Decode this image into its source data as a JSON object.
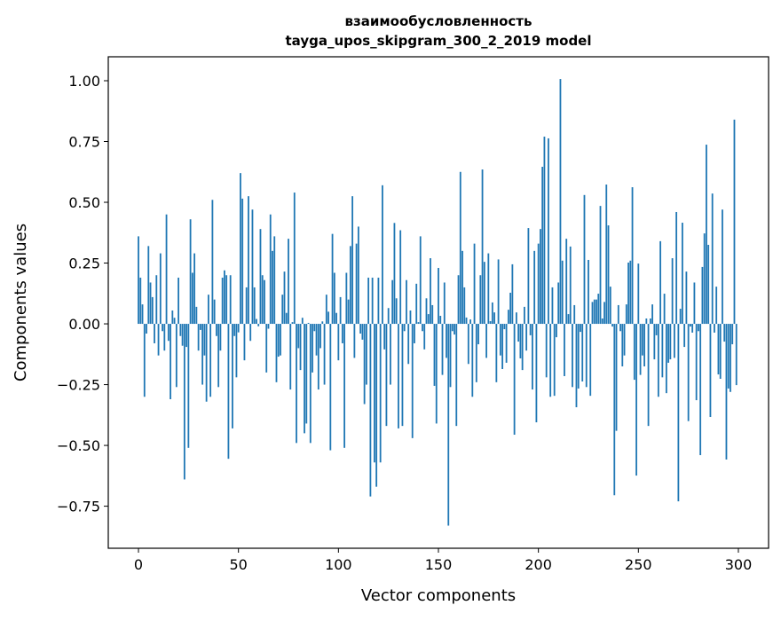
{
  "chart_data": {
    "type": "bar",
    "title": "взаимообусловленность",
    "subtitle": "tayga_upos_skipgram_300_2_2019 model",
    "xlabel": "Vector components",
    "ylabel": "Components values",
    "xlim": [
      -15.1,
      315.1
    ],
    "ylim": [
      -0.923,
      1.0985
    ],
    "xticks": [
      0,
      50,
      100,
      150,
      200,
      250,
      300
    ],
    "xtick_labels": [
      "0",
      "50",
      "100",
      "150",
      "200",
      "250",
      "300"
    ],
    "yticks": [
      -0.75,
      -0.5,
      -0.25,
      0,
      0.25,
      0.5,
      0.75,
      1.0
    ],
    "ytick_labels": [
      "−0.75",
      "−0.50",
      "−0.25",
      "0.00",
      "0.25",
      "0.50",
      "0.75",
      "1.00"
    ],
    "grid": false,
    "bar_color": "#1f77b4",
    "values": [
      0.36,
      0.19,
      0.08,
      -0.3,
      -0.04,
      0.32,
      0.17,
      0.11,
      -0.08,
      0.2,
      -0.13,
      0.29,
      -0.03,
      -0.11,
      0.45,
      -0.07,
      -0.31,
      0.055,
      0.025,
      -0.26,
      0.19,
      -0.05,
      -0.09,
      -0.64,
      -0.095,
      -0.51,
      0.43,
      0.21,
      0.29,
      0.07,
      -0.11,
      -0.025,
      -0.25,
      -0.13,
      -0.32,
      0.12,
      -0.3,
      0.51,
      0.1,
      -0.05,
      -0.26,
      -0.11,
      0.19,
      0.22,
      0.2,
      -0.555,
      0.2,
      -0.43,
      -0.05,
      -0.22,
      -0.035,
      0.62,
      0.515,
      -0.15,
      0.15,
      0.525,
      -0.07,
      0.47,
      0.15,
      0.02,
      -0.01,
      0.39,
      0.2,
      0.18,
      -0.2,
      -0.02,
      0.45,
      0.3,
      0.36,
      -0.24,
      -0.135,
      -0.13,
      0.12,
      0.215,
      0.045,
      0.35,
      -0.27,
      0.007,
      0.54,
      -0.49,
      -0.1,
      -0.19,
      0.025,
      -0.45,
      -0.41,
      0.004,
      -0.49,
      -0.2,
      -0.03,
      -0.13,
      -0.27,
      -0.1,
      0.01,
      -0.25,
      0.12,
      0.05,
      -0.52,
      0.37,
      0.21,
      0.045,
      -0.15,
      0.11,
      -0.08,
      -0.51,
      0.21,
      0.1,
      0.32,
      0.525,
      -0.14,
      0.33,
      0.4,
      -0.04,
      -0.065,
      -0.33,
      -0.25,
      0.19,
      -0.71,
      0.19,
      -0.57,
      -0.67,
      0.19,
      -0.57,
      0.57,
      -0.105,
      -0.42,
      0.065,
      -0.25,
      0.18,
      0.415,
      0.105,
      -0.43,
      0.385,
      -0.42,
      -0.03,
      0.18,
      -0.165,
      0.055,
      -0.47,
      -0.08,
      0.165,
      0.007,
      0.36,
      -0.03,
      -0.105,
      0.105,
      0.04,
      0.27,
      0.077,
      -0.255,
      -0.41,
      0.23,
      0.033,
      -0.21,
      0.17,
      -0.14,
      -0.83,
      -0.26,
      -0.03,
      -0.044,
      -0.42,
      0.2,
      0.625,
      0.3,
      0.15,
      0.026,
      -0.165,
      0.018,
      -0.3,
      0.33,
      -0.24,
      -0.084,
      0.2,
      0.635,
      0.255,
      -0.14,
      0.29,
      0.011,
      0.088,
      0.047,
      -0.24,
      0.265,
      -0.13,
      -0.186,
      -0.022,
      -0.16,
      0.058,
      0.128,
      0.245,
      -0.456,
      0.047,
      -0.073,
      -0.142,
      -0.19,
      0.07,
      -0.11,
      0.394,
      -0.047,
      -0.27,
      0.3,
      -0.405,
      0.33,
      0.39,
      0.646,
      0.77,
      -0.22,
      0.763,
      -0.3,
      0.15,
      -0.296,
      -0.055,
      0.17,
      1.007,
      0.26,
      -0.215,
      0.35,
      0.04,
      0.318,
      -0.26,
      0.077,
      -0.343,
      -0.266,
      -0.033,
      -0.237,
      0.53,
      -0.26,
      0.263,
      -0.296,
      0.09,
      0.1,
      0.1,
      0.124,
      0.485,
      0.022,
      0.09,
      0.573,
      0.405,
      0.153,
      -0.011,
      -0.705,
      -0.44,
      0.077,
      -0.03,
      -0.175,
      -0.13,
      0.08,
      0.252,
      0.26,
      0.562,
      -0.23,
      -0.624,
      0.248,
      -0.21,
      -0.13,
      -0.175,
      0.022,
      -0.42,
      0.022,
      0.08,
      -0.146,
      -0.047,
      -0.3,
      0.34,
      -0.22,
      0.124,
      -0.285,
      -0.16,
      -0.146,
      0.27,
      -0.14,
      0.46,
      -0.73,
      0.062,
      0.416,
      -0.095,
      0.215,
      -0.4,
      -0.011,
      -0.036,
      0.17,
      -0.314,
      -0.03,
      -0.54,
      0.234,
      0.372,
      0.737,
      0.325,
      -0.383,
      0.536,
      -0.036,
      0.153,
      -0.208,
      -0.226,
      0.47,
      -0.073,
      -0.558,
      -0.266,
      -0.28,
      -0.084,
      0.84,
      -0.252
    ]
  }
}
